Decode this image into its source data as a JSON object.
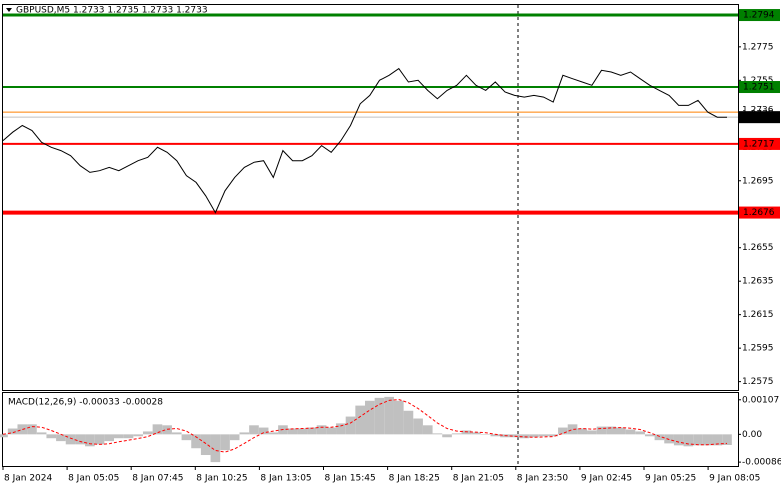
{
  "chart_data": [
    {
      "type": "line",
      "title": "GBPUSD,M5  1.2733 1.2735 1.2733 1.2733",
      "color": "#000000",
      "xtick_labels": [
        "8 Jan 2024",
        "8 Jan 05:05",
        "8 Jan 07:45",
        "8 Jan 10:25",
        "8 Jan 13:05",
        "8 Jan 15:45",
        "8 Jan 18:25",
        "8 Jan 21:05",
        "8 Jan 23:50",
        "9 Jan 02:45",
        "9 Jan 05:25",
        "9 Jan 08:05"
      ],
      "values": [
        1.2719,
        1.2724,
        1.2728,
        1.2725,
        1.2718,
        1.2715,
        1.2713,
        1.271,
        1.2704,
        1.27,
        1.2701,
        1.2703,
        1.2701,
        1.2704,
        1.2707,
        1.2709,
        1.2715,
        1.2712,
        1.2707,
        1.2698,
        1.2694,
        1.2686,
        1.2676,
        1.2689,
        1.2697,
        1.2703,
        1.2706,
        1.2707,
        1.2697,
        1.2713,
        1.2707,
        1.2707,
        1.271,
        1.2716,
        1.2712,
        1.2719,
        1.2728,
        1.2741,
        1.2746,
        1.2755,
        1.2758,
        1.2762,
        1.2754,
        1.2755,
        1.2749,
        1.2744,
        1.2749,
        1.2752,
        1.2758,
        1.2752,
        1.2749,
        1.2754,
        1.2748,
        1.2746,
        1.2745,
        1.2746,
        1.2745,
        1.2742,
        1.2758,
        1.2756,
        1.2754,
        1.2752,
        1.2761,
        1.276,
        1.2758,
        1.276,
        1.2756,
        1.2752,
        1.2749,
        1.2746,
        1.274,
        1.274,
        1.2743,
        1.2736,
        1.2733,
        1.2733
      ],
      "ylim": [
        1.257,
        1.28
      ],
      "yticks": [
        1.2575,
        1.2595,
        1.2615,
        1.2635,
        1.2655,
        1.2675,
        1.2695,
        1.2715,
        1.2735,
        1.2755,
        1.2775
      ],
      "levels": [
        {
          "value": 1.2794,
          "color": "#008000",
          "width": 3
        },
        {
          "value": 1.2751,
          "color": "#008000",
          "width": 2
        },
        {
          "value": 1.2717,
          "color": "#ff0000",
          "width": 2
        },
        {
          "value": 1.2676,
          "color": "#ff0000",
          "width": 4
        }
      ],
      "ask": {
        "value": 1.2736,
        "color": "#ff8000"
      },
      "bid": {
        "value": 1.2733,
        "color": "#000000"
      }
    },
    {
      "type": "macd",
      "title": "MACD(12,26,9) -0.00033 -0.00028",
      "hist_color": "#c0c0c0",
      "signal_color": "#ff0000",
      "histogram": [
        -9e-05,
        0.00018,
        0.00031,
        0.00031,
        6e-05,
        -0.00012,
        -0.00021,
        -0.00031,
        -0.00031,
        -0.00037,
        -0.00031,
        -0.00021,
        -0.00012,
        -0.00012,
        -6e-05,
        9e-05,
        0.00031,
        0.00028,
        6e-05,
        -0.00018,
        -0.00043,
        -0.00064,
        -0.00086,
        -0.00049,
        -0.00018,
        6e-05,
        0.00028,
        0.00021,
        6e-05,
        0.00028,
        0.00018,
        0.00018,
        0.00021,
        0.00028,
        0.00021,
        0.00034,
        0.00055,
        0.00089,
        0.00104,
        0.00113,
        0.00116,
        0.00104,
        0.00073,
        0.00049,
        0.00028,
        3e-05,
        -9e-05,
        3e-05,
        0.00012,
        6e-05,
        0,
        -6e-05,
        -9e-05,
        -9e-05,
        -0.00012,
        -9e-05,
        -6e-05,
        -6e-05,
        0.00021,
        0.00031,
        0.00018,
        0.00012,
        0.00024,
        0.00024,
        0.00021,
        0.00015,
        9e-05,
        -6e-05,
        -0.00018,
        -0.00028,
        -0.00034,
        -0.00037,
        -0.00034,
        -0.00034,
        -0.00034,
        -0.00033
      ],
      "signal": [
        0,
        5e-05,
        0.00015,
        0.00024,
        0.00022,
        0.00012,
        0,
        -0.00012,
        -0.00022,
        -0.00029,
        -0.00031,
        -0.00029,
        -0.00023,
        -0.00018,
        -0.00013,
        -7e-05,
        5e-05,
        0.00016,
        0.00018,
        0.0001,
        -8e-05,
        -0.00028,
        -0.0005,
        -0.00055,
        -0.00045,
        -0.00028,
        -0.0001,
        5e-05,
        0.0001,
        0.00015,
        0.00017,
        0.00018,
        0.00019,
        0.00022,
        0.00022,
        0.00026,
        0.00035,
        0.00055,
        0.00075,
        0.00093,
        0.00105,
        0.00108,
        0.00098,
        0.0008,
        0.00058,
        0.00035,
        0.00018,
        0.0001,
        8e-05,
        7e-05,
        5e-05,
        0,
        -4e-05,
        -6e-05,
        -8e-05,
        -9e-05,
        -8e-05,
        -7e-05,
        3e-05,
        0.00015,
        0.00018,
        0.00016,
        0.00018,
        0.0002,
        0.00021,
        0.00019,
        0.00015,
        5e-05,
        -6e-05,
        -0.00016,
        -0.00024,
        -0.0003,
        -0.00032,
        -0.00032,
        -0.0003,
        -0.00028
      ],
      "ylim": [
        -0.00098,
        0.00128
      ],
      "yticks": [
        -0.00086,
        {
          "value": 0,
          "label": "0.00"
        },
        0.00107
      ]
    }
  ]
}
